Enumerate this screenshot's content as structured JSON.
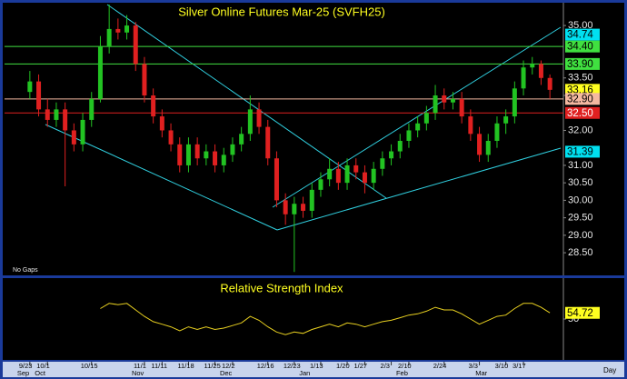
{
  "chart_data": {
    "type": "candlestick",
    "title": "Silver Online Futures Mar-25 (SVFH25)",
    "note": "No Gaps",
    "x_unit_label": "Day",
    "categories": [
      "9/23",
      null,
      "10/1",
      null,
      null,
      null,
      null,
      "10/15",
      null,
      null,
      null,
      null,
      null,
      "11/1",
      null,
      "11/11",
      null,
      null,
      "11/18",
      null,
      null,
      "11/25",
      null,
      "12/2",
      null,
      null,
      null,
      "12/16",
      null,
      null,
      "12/23",
      null,
      null,
      "1/13",
      null,
      null,
      "1/20",
      null,
      "1/27",
      null,
      null,
      "2/3",
      null,
      "2/10",
      null,
      null,
      null,
      "2/24",
      null,
      null,
      null,
      "3/3",
      null,
      null,
      "3/10",
      null,
      "3/17",
      null,
      null,
      null
    ],
    "months": [
      "Sep",
      null,
      "Oct",
      null,
      null,
      null,
      null,
      null,
      null,
      null,
      null,
      null,
      null,
      "Nov",
      null,
      null,
      null,
      null,
      null,
      null,
      null,
      null,
      null,
      "Dec",
      null,
      null,
      null,
      null,
      null,
      null,
      null,
      null,
      "Jan",
      null,
      null,
      null,
      null,
      null,
      null,
      null,
      null,
      null,
      null,
      "Feb",
      null,
      null,
      null,
      null,
      null,
      null,
      null,
      null,
      "Mar",
      null,
      null,
      null,
      null,
      null,
      null,
      null
    ],
    "open": [
      33.1,
      33.4,
      32.6,
      32.3,
      32.6,
      32.0,
      31.6,
      32.3,
      32.9,
      34.4,
      34.9,
      34.8,
      35.0,
      33.9,
      33.0,
      32.4,
      32.0,
      31.6,
      31.0,
      31.6,
      31.2,
      31.4,
      31.0,
      31.3,
      31.6,
      31.9,
      32.6,
      32.1,
      31.2,
      30.0,
      29.6,
      29.9,
      29.7,
      30.3,
      30.6,
      30.9,
      30.5,
      31.0,
      30.8,
      30.5,
      30.9,
      31.2,
      31.4,
      31.7,
      32.0,
      32.2,
      32.5,
      33.0,
      32.8,
      32.9,
      32.4,
      31.9,
      31.3,
      31.7,
      32.2,
      32.4,
      33.2,
      33.8,
      33.9,
      33.5
    ],
    "high": [
      33.7,
      33.6,
      32.9,
      32.8,
      32.8,
      32.2,
      32.5,
      33.1,
      34.7,
      35.6,
      35.2,
      35.3,
      35.1,
      34.1,
      33.2,
      32.6,
      32.2,
      31.8,
      31.8,
      31.8,
      31.6,
      31.6,
      31.5,
      31.8,
      32.1,
      33.0,
      32.8,
      32.3,
      31.4,
      30.2,
      30.1,
      30.1,
      30.5,
      30.8,
      31.2,
      31.1,
      31.2,
      31.2,
      31.0,
      31.1,
      31.4,
      31.6,
      31.9,
      32.2,
      32.4,
      32.7,
      33.3,
      33.2,
      33.1,
      33.1,
      32.6,
      32.1,
      31.9,
      32.4,
      32.6,
      33.4,
      34.0,
      34.1,
      34.0,
      33.6
    ],
    "low": [
      32.9,
      32.4,
      32.1,
      32.1,
      30.4,
      31.4,
      31.4,
      32.1,
      32.8,
      34.2,
      34.6,
      34.6,
      33.7,
      32.8,
      32.2,
      31.8,
      31.4,
      30.8,
      30.8,
      31.0,
      31.0,
      30.8,
      30.8,
      31.1,
      31.4,
      31.7,
      31.9,
      31.0,
      29.8,
      29.3,
      27.95,
      29.5,
      29.5,
      30.1,
      30.4,
      30.3,
      30.3,
      30.6,
      30.2,
      30.3,
      30.7,
      31.0,
      31.2,
      31.5,
      31.8,
      32.0,
      32.3,
      32.6,
      32.6,
      32.2,
      31.7,
      31.1,
      31.1,
      31.5,
      31.9,
      32.2,
      33.0,
      33.6,
      33.3,
      32.9
    ],
    "close": [
      33.4,
      32.6,
      32.3,
      32.6,
      32.0,
      31.6,
      32.3,
      32.9,
      34.4,
      34.9,
      34.8,
      35.0,
      33.9,
      33.0,
      32.4,
      32.0,
      31.6,
      31.0,
      31.6,
      31.2,
      31.4,
      31.0,
      31.3,
      31.6,
      31.9,
      32.6,
      32.1,
      31.2,
      30.0,
      29.6,
      29.9,
      29.7,
      30.3,
      30.6,
      30.9,
      30.5,
      31.0,
      30.8,
      30.5,
      30.9,
      31.2,
      31.4,
      31.7,
      32.0,
      32.2,
      32.5,
      33.0,
      32.8,
      32.9,
      32.4,
      31.9,
      31.3,
      31.7,
      32.2,
      32.4,
      33.2,
      33.8,
      33.9,
      33.5,
      33.16
    ],
    "up_color": "#22c322",
    "down_color": "#e02020",
    "ylim": [
      27.93,
      35.6
    ],
    "yticks": [
      {
        "value": 35,
        "label": "35.00"
      },
      {
        "value": 33.5,
        "label": "33.50"
      },
      {
        "value": 33,
        "label": "33.00"
      },
      {
        "value": 32,
        "label": "32.00"
      },
      {
        "value": 31,
        "label": "31.00"
      },
      {
        "value": 30.5,
        "label": "30.50"
      },
      {
        "value": 30,
        "label": "30.00"
      },
      {
        "value": 29.5,
        "label": "29.50"
      },
      {
        "value": 29,
        "label": "29.00"
      },
      {
        "value": 28.5,
        "label": "28.50"
      }
    ],
    "levels": [
      {
        "value": 34.74,
        "label": "34.74",
        "color": "#00e0f0",
        "line": false
      },
      {
        "value": 34.4,
        "label": "34.40",
        "color": "#40e040",
        "line": true
      },
      {
        "value": 33.9,
        "label": "33.90",
        "color": "#40e040",
        "line": true
      },
      {
        "value": 33.16,
        "label": "33.16",
        "color": "#ffff20",
        "line": false
      },
      {
        "value": 32.9,
        "label": "32.90",
        "color": "#f4b8a0",
        "line": true
      },
      {
        "value": 32.5,
        "label": "32.50",
        "color": "#e02020",
        "line": true
      },
      {
        "value": 31.39,
        "label": "31.39",
        "color": "#00e0f0",
        "line": false
      }
    ],
    "rsi": {
      "title": "Relative Strength Index",
      "color": "#e8d020",
      "ylim": [
        20,
        80
      ],
      "yticks": [
        50
      ],
      "values": [
        null,
        null,
        null,
        null,
        null,
        null,
        null,
        null,
        58,
        62,
        61,
        62,
        57,
        52,
        48,
        46,
        44,
        41,
        44,
        42,
        44,
        42,
        43,
        45,
        47,
        52,
        49,
        44,
        40,
        38,
        40,
        39,
        42,
        44,
        46,
        44,
        47,
        46,
        44,
        46,
        48,
        49,
        51,
        53,
        54,
        56,
        59,
        57,
        57,
        54,
        50,
        46,
        49,
        52,
        53,
        58,
        62,
        62,
        59,
        54.72
      ]
    }
  }
}
